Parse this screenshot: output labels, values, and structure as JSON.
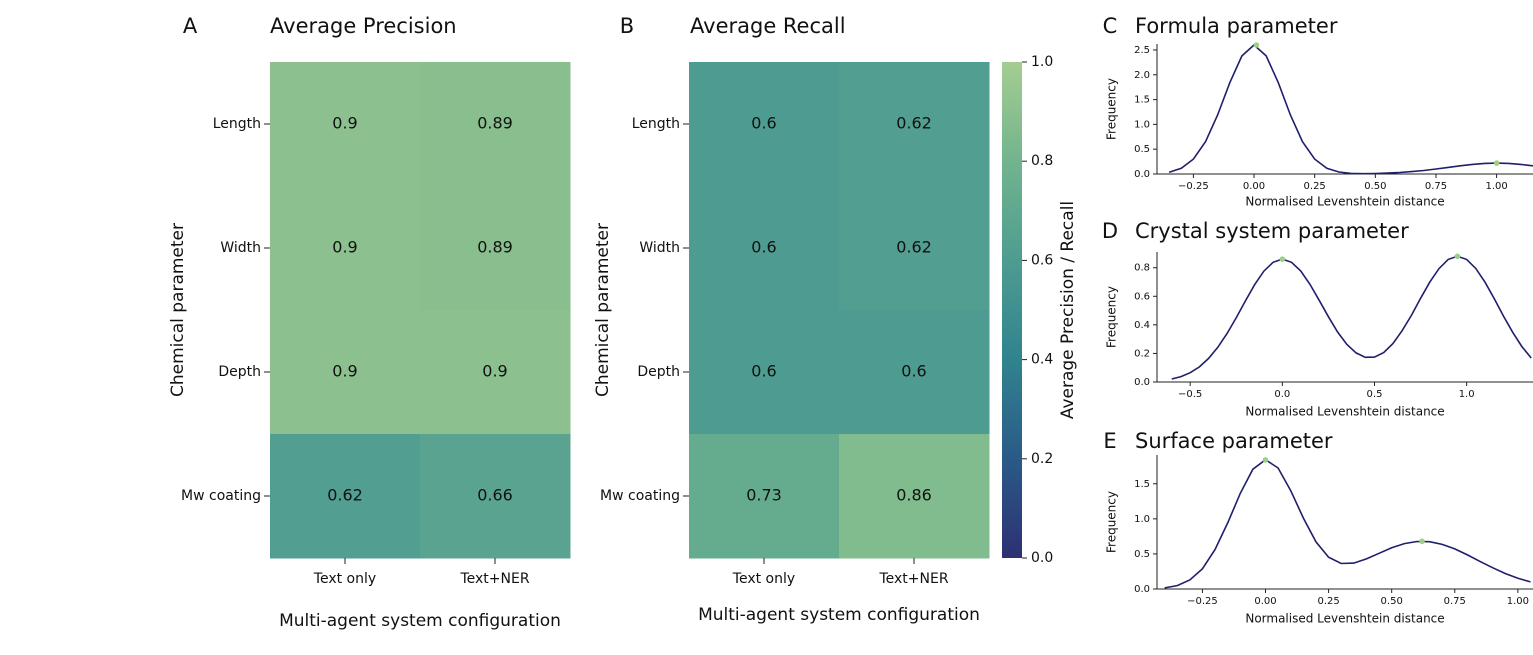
{
  "chart_data": [
    {
      "type": "heatmap",
      "panel_label": "A",
      "title": "Average Precision",
      "x_categories": [
        "Text only",
        "Text+NER"
      ],
      "y_categories": [
        "Length",
        "Width",
        "Depth",
        "Mw coating"
      ],
      "values": [
        [
          0.9,
          0.89
        ],
        [
          0.9,
          0.89
        ],
        [
          0.9,
          0.9
        ],
        [
          0.62,
          0.66
        ]
      ],
      "xlabel": "Multi-agent system configuration",
      "ylabel": "Chemical parameter",
      "clim": [
        0,
        1
      ],
      "colormap": [
        "#2c3172",
        "#2a5a88",
        "#30838e",
        "#4e9c91",
        "#72b48e",
        "#a5cd90"
      ]
    },
    {
      "type": "heatmap",
      "panel_label": "B",
      "title": "Average Recall",
      "x_categories": [
        "Text only",
        "Text+NER"
      ],
      "y_categories": [
        "Length",
        "Width",
        "Depth",
        "Mw coating"
      ],
      "values": [
        [
          0.6,
          0.62
        ],
        [
          0.6,
          0.62
        ],
        [
          0.6,
          0.6
        ],
        [
          0.73,
          0.86
        ]
      ],
      "xlabel": "Multi-agent system configuration",
      "ylabel": "Chemical parameter",
      "clim": [
        0,
        1
      ],
      "colormap": [
        "#2c3172",
        "#2a5a88",
        "#30838e",
        "#4e9c91",
        "#72b48e",
        "#a5cd90"
      ],
      "colorbar": {
        "label": "Average Precision / Recall",
        "ticks": [
          {
            "value": 0,
            "label": "0.0"
          },
          0.2,
          0.4,
          0.6,
          0.8,
          {
            "value": 1,
            "label": "1.0"
          }
        ]
      }
    },
    {
      "type": "line",
      "panel_label": "C",
      "title": "Formula parameter",
      "xlabel": "Normalised Levenshtein distance",
      "ylabel": "Frequency",
      "color": "#1f1f6b",
      "x": [
        -0.35,
        -0.3,
        -0.25,
        -0.2,
        -0.15,
        -0.1,
        -0.05,
        0,
        0.05,
        0.1,
        0.15,
        0.2,
        0.25,
        0.3,
        0.35,
        0.4,
        0.45,
        0.5,
        0.55,
        0.6,
        0.65,
        0.7,
        0.75,
        0.8,
        0.85,
        0.9,
        0.95,
        1.0,
        1.05,
        1.1,
        1.15
      ],
      "values": [
        0.037,
        0.114,
        0.3,
        0.65,
        1.19,
        1.84,
        2.38,
        2.6,
        2.38,
        1.84,
        1.19,
        0.65,
        0.3,
        0.115,
        0.04,
        0.012,
        0.007,
        0.01,
        0.018,
        0.03,
        0.048,
        0.071,
        0.1,
        0.134,
        0.166,
        0.194,
        0.213,
        0.22,
        0.213,
        0.194,
        0.166
      ],
      "markers": {
        "x": [
          0.01,
          1.0
        ],
        "values": [
          2.6,
          0.22
        ],
        "color": "#9ccf8a"
      },
      "xlim": [
        -0.4,
        1.15
      ],
      "ylim": [
        0,
        2.62
      ],
      "xticks": [
        {
          "value": -0.25,
          "label": "−0.25"
        },
        {
          "value": 0,
          "label": "0.00"
        },
        0.25,
        {
          "value": 0.5,
          "label": "0.50"
        },
        0.75,
        {
          "value": 1,
          "label": "1.00"
        }
      ],
      "yticks": [
        {
          "value": 0,
          "label": "0.0"
        },
        0.5,
        {
          "value": 1,
          "label": "1.0"
        },
        1.5,
        {
          "value": 2,
          "label": "2.0"
        },
        2.5
      ]
    },
    {
      "type": "line",
      "panel_label": "D",
      "title": "Crystal system  parameter",
      "xlabel": "Normalised Levenshtein distance",
      "ylabel": "Frequency",
      "color": "#1f1f6b",
      "x": [
        -0.6,
        -0.55,
        -0.5,
        -0.45,
        -0.4,
        -0.35,
        -0.3,
        -0.25,
        -0.2,
        -0.15,
        -0.1,
        -0.05,
        0,
        0.05,
        0.1,
        0.15,
        0.2,
        0.25,
        0.3,
        0.35,
        0.4,
        0.45,
        0.5,
        0.55,
        0.6,
        0.65,
        0.7,
        0.75,
        0.8,
        0.85,
        0.9,
        0.95,
        1.0,
        1.05,
        1.1,
        1.15,
        1.2,
        1.25,
        1.3,
        1.35
      ],
      "values": [
        0.021,
        0.038,
        0.065,
        0.106,
        0.165,
        0.243,
        0.339,
        0.451,
        0.569,
        0.682,
        0.776,
        0.838,
        0.86,
        0.838,
        0.777,
        0.683,
        0.572,
        0.457,
        0.35,
        0.264,
        0.204,
        0.173,
        0.174,
        0.206,
        0.269,
        0.359,
        0.466,
        0.586,
        0.699,
        0.794,
        0.858,
        0.88,
        0.858,
        0.794,
        0.698,
        0.583,
        0.461,
        0.348,
        0.248,
        0.168
      ],
      "markers": {
        "x": [
          0.0,
          0.95
        ],
        "values": [
          0.86,
          0.88
        ],
        "color": "#9ccf8a"
      },
      "xlim": [
        -0.68,
        1.36
      ],
      "ylim": [
        0,
        0.91
      ],
      "xticks": [
        {
          "value": -0.5,
          "label": "−0.5"
        },
        {
          "value": 0,
          "label": "0.0"
        },
        0.5,
        {
          "value": 1,
          "label": "1.0"
        }
      ],
      "yticks": [
        {
          "value": 0,
          "label": "0.0"
        },
        0.2,
        0.4,
        0.6,
        0.8
      ]
    },
    {
      "type": "line",
      "panel_label": "E",
      "title": "Surface parameter",
      "xlabel": "Normalised Levenshtein distance",
      "ylabel": "Frequency",
      "color": "#1f1f6b",
      "x": [
        -0.4,
        -0.35,
        -0.3,
        -0.25,
        -0.2,
        -0.15,
        -0.1,
        -0.05,
        0,
        0.05,
        0.1,
        0.15,
        0.2,
        0.25,
        0.3,
        0.35,
        0.4,
        0.45,
        0.5,
        0.55,
        0.6,
        0.65,
        0.7,
        0.75,
        0.8,
        0.85,
        0.9,
        0.95,
        1.0,
        1.05
      ],
      "values": [
        0.016,
        0.049,
        0.128,
        0.288,
        0.561,
        0.942,
        1.364,
        1.707,
        1.843,
        1.724,
        1.403,
        1.01,
        0.671,
        0.453,
        0.364,
        0.369,
        0.429,
        0.509,
        0.587,
        0.647,
        0.677,
        0.674,
        0.636,
        0.571,
        0.486,
        0.394,
        0.303,
        0.221,
        0.153,
        0.101
      ],
      "markers": {
        "x": [
          0.0,
          0.62
        ],
        "values": [
          1.84,
          0.68
        ],
        "color": "#9ccf8a"
      },
      "xlim": [
        -0.43,
        1.06
      ],
      "ylim": [
        0,
        1.91
      ],
      "xticks": [
        {
          "value": -0.25,
          "label": "−0.25"
        },
        {
          "value": 0,
          "label": "0.00"
        },
        0.25,
        {
          "value": 0.5,
          "label": "0.50"
        },
        0.75,
        {
          "value": 1,
          "label": "1.00"
        }
      ],
      "yticks": [
        {
          "value": 0,
          "label": "0.0"
        },
        0.5,
        {
          "value": 1,
          "label": "1.0"
        },
        1.5
      ]
    }
  ]
}
